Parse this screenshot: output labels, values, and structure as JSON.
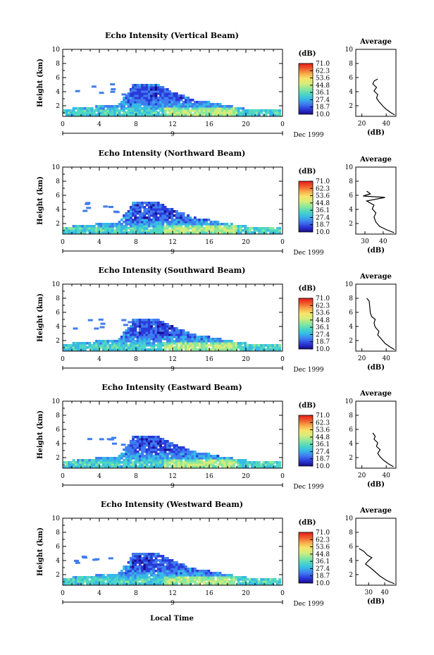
{
  "colors": {
    "colormap": [
      "#1a0a8c",
      "#2a3ad8",
      "#3f7cf0",
      "#36b9e6",
      "#4fd7c2",
      "#8de89a",
      "#d6ec7a",
      "#f7e46a",
      "#f7a84a",
      "#f05a2a",
      "#e21c1c"
    ],
    "profile_line": "#000000",
    "axis": "#000000"
  },
  "figure": {
    "xlabel": "Local Time",
    "date_label": "Dec 1999",
    "day_label": "9"
  },
  "chart_data": [
    {
      "type": "heatmap",
      "title": "Echo Intensity (Vertical Beam)",
      "ylabel": "Height (km)",
      "xlabel": "",
      "x_ticks": [
        "0",
        "4",
        "8",
        "12",
        "16",
        "20",
        "0"
      ],
      "y_ticks": [
        "2",
        "4",
        "6",
        "8",
        "10"
      ],
      "xlim": [
        0,
        24
      ],
      "ylim": [
        0.5,
        10
      ],
      "colorbar": {
        "label": "(dB)",
        "ticks": [
          "71.0",
          "62.3",
          "53.6",
          "44.8",
          "36.1",
          "27.4",
          "18.7",
          "10.0"
        ],
        "range": [
          10.0,
          71.0
        ]
      },
      "profile": {
        "title": "Average",
        "xlabel": "(dB)",
        "x_ticks": [
          "20",
          "40"
        ],
        "xlim": [
          15,
          48
        ],
        "ylim": [
          0.5,
          10
        ],
        "y_ticks": [
          "2",
          "4",
          "6",
          "8",
          "10"
        ],
        "points": [
          [
            47,
            0.7
          ],
          [
            44,
            1.0
          ],
          [
            40,
            1.5
          ],
          [
            37,
            2.0
          ],
          [
            34,
            2.6
          ],
          [
            32,
            3.1
          ],
          [
            33,
            3.6
          ],
          [
            30,
            4.1
          ],
          [
            32,
            4.6
          ],
          [
            29,
            5.1
          ],
          [
            30,
            5.5
          ],
          [
            33,
            5.8
          ]
        ]
      }
    },
    {
      "type": "heatmap",
      "title": "Echo Intensity (Northward Beam)",
      "ylabel": "Height (km)",
      "xlabel": "",
      "x_ticks": [
        "0",
        "4",
        "8",
        "12",
        "16",
        "20",
        "0"
      ],
      "y_ticks": [
        "2",
        "4",
        "6",
        "8",
        "10"
      ],
      "xlim": [
        0,
        24
      ],
      "ylim": [
        0.5,
        10
      ],
      "colorbar": {
        "label": "(dB)",
        "ticks": [
          "71.0",
          "62.3",
          "53.6",
          "44.8",
          "36.1",
          "27.4",
          "18.7",
          "10.0"
        ],
        "range": [
          10.0,
          71.0
        ]
      },
      "profile": {
        "title": "Average",
        "xlabel": "(dB)",
        "x_ticks": [
          "30",
          "40"
        ],
        "xlim": [
          25,
          47
        ],
        "ylim": [
          0.5,
          10
        ],
        "y_ticks": [
          "2",
          "4",
          "6",
          "8",
          "10"
        ],
        "points": [
          [
            46,
            0.7
          ],
          [
            42,
            1.1
          ],
          [
            38,
            1.6
          ],
          [
            36,
            2.2
          ],
          [
            35,
            2.9
          ],
          [
            36,
            3.5
          ],
          [
            34,
            4.1
          ],
          [
            35,
            4.6
          ],
          [
            31,
            5.2
          ],
          [
            41,
            5.7
          ],
          [
            29,
            5.9
          ],
          [
            33,
            6.2
          ],
          [
            31,
            6.6
          ]
        ]
      }
    },
    {
      "type": "heatmap",
      "title": "Echo Intensity (Southward Beam)",
      "ylabel": "Height (km)",
      "xlabel": "",
      "x_ticks": [
        "0",
        "4",
        "8",
        "12",
        "16",
        "20",
        "0"
      ],
      "y_ticks": [
        "2",
        "4",
        "6",
        "8",
        "10"
      ],
      "xlim": [
        0,
        24
      ],
      "ylim": [
        0.5,
        10
      ],
      "colorbar": {
        "label": "(dB)",
        "ticks": [
          "71.0",
          "62.3",
          "53.6",
          "44.8",
          "36.1",
          "27.4",
          "18.7",
          "10.0"
        ],
        "range": [
          10.0,
          71.0
        ]
      },
      "profile": {
        "title": "Average",
        "xlabel": "(dB)",
        "x_ticks": [
          "20",
          "40"
        ],
        "xlim": [
          15,
          48
        ],
        "ylim": [
          0.5,
          10
        ],
        "y_ticks": [
          "2",
          "4",
          "6",
          "8",
          "10"
        ],
        "points": [
          [
            47,
            0.7
          ],
          [
            43,
            1.1
          ],
          [
            39,
            1.6
          ],
          [
            36,
            2.2
          ],
          [
            33,
            2.8
          ],
          [
            34,
            3.3
          ],
          [
            31,
            3.9
          ],
          [
            30,
            4.5
          ],
          [
            31,
            5.0
          ],
          [
            28,
            5.4
          ],
          [
            27,
            5.9
          ],
          [
            26,
            7.6
          ],
          [
            24,
            8.0
          ]
        ]
      }
    },
    {
      "type": "heatmap",
      "title": "Echo Intensity (Eastward Beam)",
      "ylabel": "Height (km)",
      "xlabel": "",
      "x_ticks": [
        "0",
        "4",
        "8",
        "12",
        "16",
        "20",
        "0"
      ],
      "y_ticks": [
        "2",
        "4",
        "6",
        "8",
        "10"
      ],
      "xlim": [
        0,
        24
      ],
      "ylim": [
        0.5,
        10
      ],
      "colorbar": {
        "label": "(dB)",
        "ticks": [
          "71.0",
          "62.3",
          "53.6",
          "44.8",
          "36.1",
          "27.4",
          "18.7",
          "10.0"
        ],
        "range": [
          10.0,
          71.0
        ]
      },
      "profile": {
        "title": "Average",
        "xlabel": "(dB)",
        "x_ticks": [
          "20",
          "40"
        ],
        "xlim": [
          15,
          48
        ],
        "ylim": [
          0.5,
          10
        ],
        "y_ticks": [
          "2",
          "4",
          "6",
          "8",
          "10"
        ],
        "points": [
          [
            46,
            0.7
          ],
          [
            42,
            1.1
          ],
          [
            38,
            1.6
          ],
          [
            35,
            2.1
          ],
          [
            33,
            2.6
          ],
          [
            35,
            3.1
          ],
          [
            32,
            3.6
          ],
          [
            33,
            4.1
          ],
          [
            30,
            4.6
          ],
          [
            31,
            5.0
          ],
          [
            29,
            5.5
          ]
        ]
      }
    },
    {
      "type": "heatmap",
      "title": "Echo Intensity (Westward Beam)",
      "ylabel": "Height (km)",
      "xlabel": "Local Time",
      "x_ticks": [
        "0",
        "4",
        "8",
        "12",
        "16",
        "20",
        "0"
      ],
      "y_ticks": [
        "2",
        "4",
        "6",
        "8",
        "10"
      ],
      "xlim": [
        0,
        24
      ],
      "ylim": [
        0.5,
        10
      ],
      "colorbar": {
        "label": "(dB)",
        "ticks": [
          "71.0",
          "62.3",
          "53.6",
          "44.8",
          "36.1",
          "27.4",
          "18.7",
          "10.0"
        ],
        "range": [
          10.0,
          71.0
        ]
      },
      "profile": {
        "title": "Average",
        "xlabel": "(dB)",
        "x_ticks": [
          "30",
          "40"
        ],
        "xlim": [
          22,
          47
        ],
        "ylim": [
          0.5,
          10
        ],
        "y_ticks": [
          "2",
          "4",
          "6",
          "8",
          "10"
        ],
        "points": [
          [
            46,
            0.7
          ],
          [
            41,
            1.2
          ],
          [
            37,
            1.8
          ],
          [
            34,
            2.4
          ],
          [
            31,
            3.0
          ],
          [
            28,
            3.5
          ],
          [
            30,
            4.0
          ],
          [
            32,
            4.4
          ],
          [
            29,
            4.8
          ],
          [
            27,
            5.3
          ],
          [
            24,
            5.7
          ]
        ]
      }
    }
  ]
}
